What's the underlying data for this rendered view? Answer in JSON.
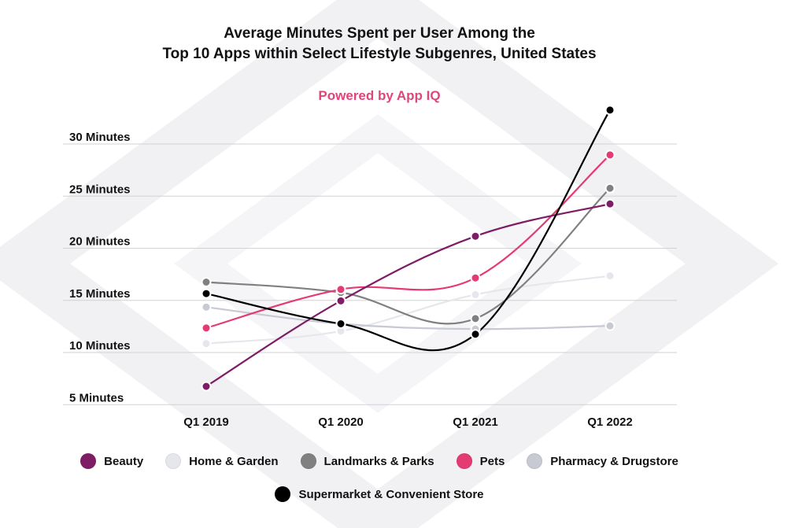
{
  "chart_data": {
    "type": "line",
    "title_line1": "Average Minutes Spent per User Among the",
    "title_line2": "Top 10 Apps within Select Lifestyle Subgenres, United States",
    "subtitle": "Powered by App IQ",
    "xlabel": "",
    "ylabel": "",
    "categories": [
      "Q1 2019",
      "Q1 2020",
      "Q1 2021",
      "Q1 2022"
    ],
    "y_ticks": [
      {
        "value": 5,
        "label": "5 Minutes"
      },
      {
        "value": 10,
        "label": "10 Minutes"
      },
      {
        "value": 15,
        "label": "15 Minutes"
      },
      {
        "value": 20,
        "label": "20 Minutes"
      },
      {
        "value": 25,
        "label": "25 Minutes"
      },
      {
        "value": 30,
        "label": "30 Minutes"
      }
    ],
    "ylim": [
      5,
      30
    ],
    "grid": true,
    "legend_position": "bottom",
    "series": [
      {
        "name": "Home & Garden",
        "color": "#e6e7ec",
        "values": [
          10.1,
          11.3,
          14.8,
          16.6
        ]
      },
      {
        "name": "Pharmacy & Drugstore",
        "color": "#c7c9d3",
        "values": [
          13.6,
          12.0,
          11.5,
          11.8
        ]
      },
      {
        "name": "Landmarks & Parks",
        "color": "#808080",
        "values": [
          16.0,
          15.0,
          12.5,
          25.0
        ]
      },
      {
        "name": "Pets",
        "color": "#e33b72",
        "values": [
          11.6,
          15.3,
          16.4,
          28.2
        ]
      },
      {
        "name": "Beauty",
        "color": "#7e1d66",
        "values": [
          6.0,
          14.2,
          20.4,
          23.5
        ]
      },
      {
        "name": "Supermarket & Convenient Store",
        "color": "#000000",
        "values": [
          14.9,
          12.0,
          11.0,
          32.5
        ]
      }
    ],
    "legend": [
      {
        "name": "Beauty",
        "color": "#7e1d66",
        "row": 1
      },
      {
        "name": "Home & Garden",
        "color": "#e6e7ec",
        "row": 1
      },
      {
        "name": "Landmarks & Parks",
        "color": "#808080",
        "row": 1
      },
      {
        "name": "Pets",
        "color": "#e33b72",
        "row": 1
      },
      {
        "name": "Pharmacy & Drugstore",
        "color": "#c7c9d3",
        "row": 1
      },
      {
        "name": "Supermarket & Convenient Store",
        "color": "#000000",
        "row": 2
      }
    ]
  }
}
